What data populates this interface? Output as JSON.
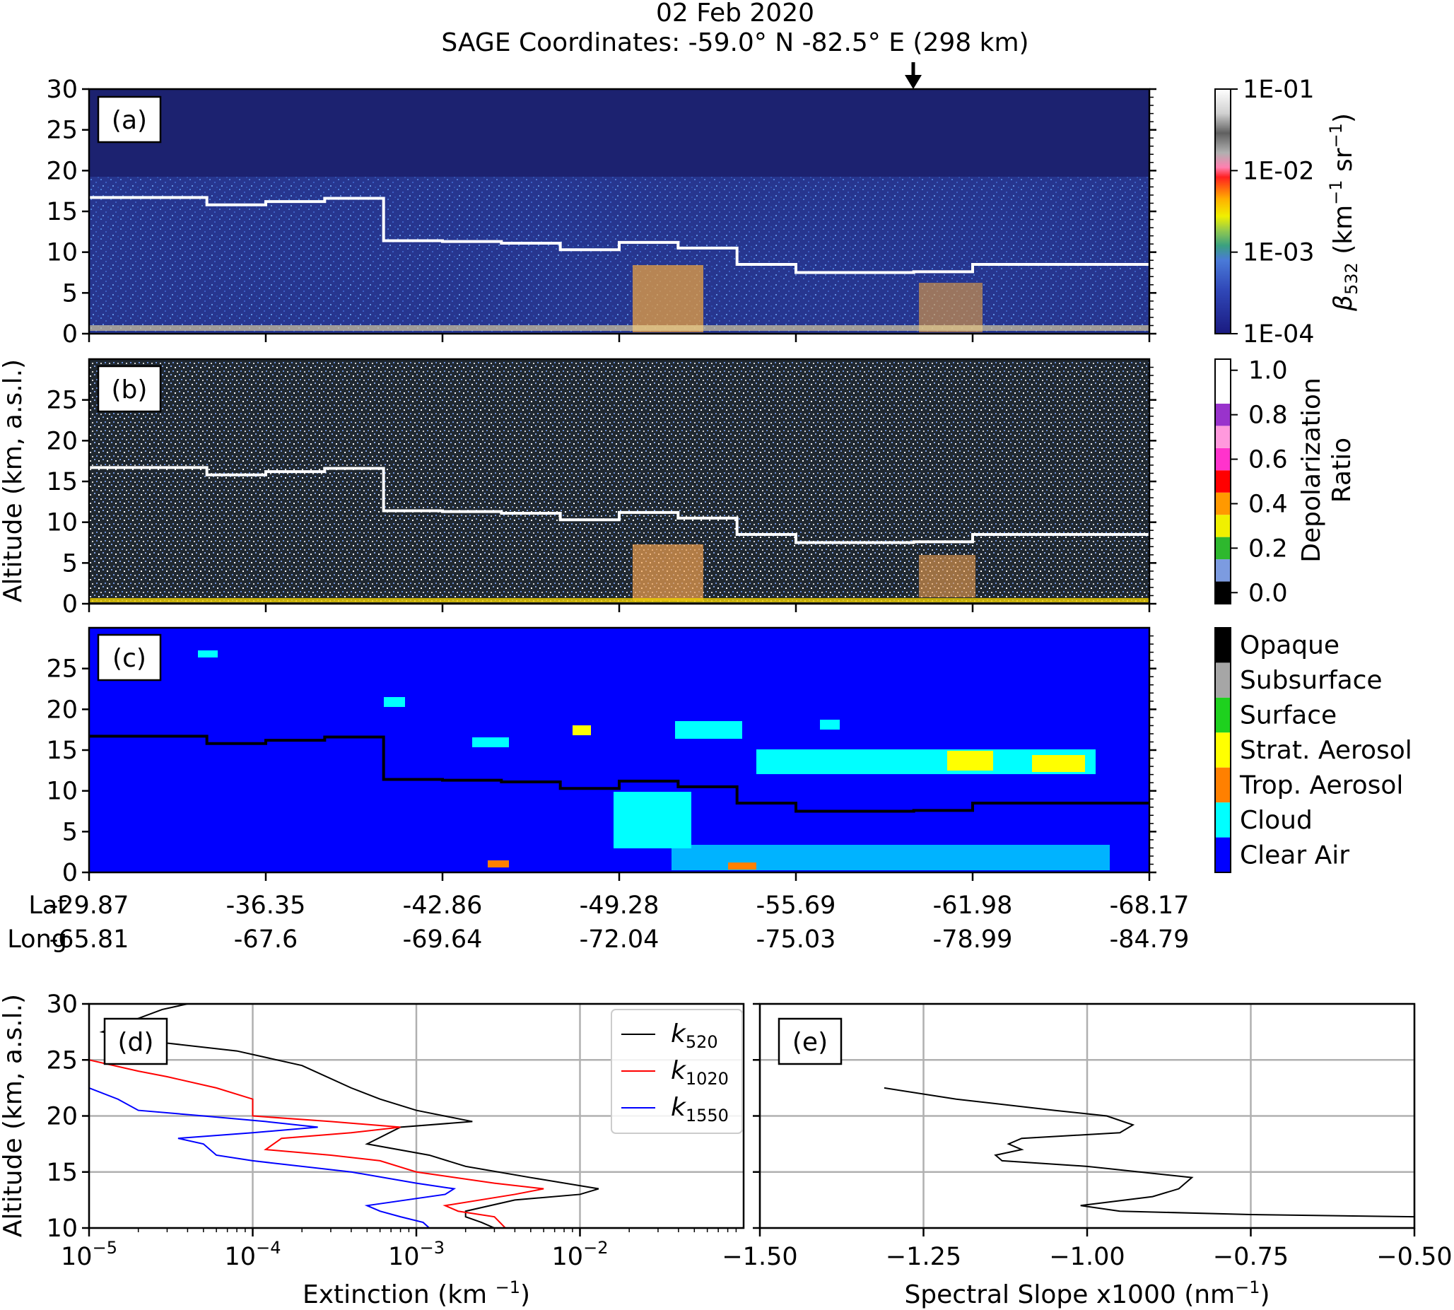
{
  "title": {
    "line1": "02 Feb 2020",
    "line2": "SAGE Coordinates: -59.0° N  -82.5° E  (298 km)"
  },
  "curtain_xaxis": {
    "row_labels": [
      "Lat",
      "Long"
    ],
    "lat_ticks": [
      "-29.87",
      "-36.35",
      "-42.86",
      "-49.28",
      "-55.69",
      "-61.98",
      "-68.17"
    ],
    "long_ticks": [
      "-65.81",
      "-67.6",
      "-69.64",
      "-72.04",
      "-75.03",
      "-78.99",
      "-84.79"
    ]
  },
  "shared_ylabel_top": "Altitude (km, a.s.l.)",
  "panels": {
    "a": {
      "tag": "(a)",
      "yticks": [
        "0",
        "5",
        "10",
        "15",
        "20",
        "25",
        "30"
      ],
      "colorbar": {
        "label_html": "β532 (km⁻¹ sr⁻¹)",
        "label_main": "β",
        "label_sub": "532",
        "label_rest": " (km",
        "label_sup1": "−1",
        "label_mid": " sr",
        "label_sup2": "−1",
        "label_end": ")",
        "ticks": [
          "1E-01",
          "1E-02",
          "1E-03",
          "1E-04"
        ]
      }
    },
    "b": {
      "tag": "(b)",
      "yticks": [
        "0",
        "5",
        "10",
        "15",
        "20",
        "25"
      ],
      "colorbar": {
        "label_line1": "Depolarization",
        "label_line2": "Ratio",
        "ticks": [
          "0.0",
          "0.2",
          "0.4",
          "0.6",
          "0.8",
          "1.0"
        ]
      }
    },
    "c": {
      "tag": "(c)",
      "yticks": [
        "0",
        "5",
        "10",
        "15",
        "20",
        "25"
      ],
      "legend": [
        {
          "label": "Opaque",
          "color": "#000000"
        },
        {
          "label": "Subsurface",
          "color": "#a6a6a6"
        },
        {
          "label": "Surface",
          "color": "#1ed11e"
        },
        {
          "label": "Strat. Aerosol",
          "color": "#ffff00"
        },
        {
          "label": "Trop. Aerosol",
          "color": "#ff8000"
        },
        {
          "label": "Cloud",
          "color": "#00ffff"
        },
        {
          "label": "Clear Air",
          "color": "#0000ff"
        }
      ]
    },
    "d": {
      "tag": "(d)",
      "ylabel": "Altitude (km, a.s.l.)",
      "xlabel": "Extinction (km ⁻¹)",
      "xlabel_main": "Extinction (km ",
      "xlabel_sup": "−1",
      "xlabel_end": ")",
      "yticks": [
        "10",
        "15",
        "20",
        "25",
        "30"
      ],
      "xticks": [
        {
          "base": "10",
          "exp": "−5"
        },
        {
          "base": "10",
          "exp": "−4"
        },
        {
          "base": "10",
          "exp": "−3"
        },
        {
          "base": "10",
          "exp": "−2"
        }
      ]
    },
    "e": {
      "tag": "(e)",
      "xlabel_main": "Spectral Slope x1000 (nm",
      "xlabel_sup": "−1",
      "xlabel_end": ")",
      "xticks": [
        "−1.50",
        "−1.25",
        "−1.00",
        "−0.75",
        "−0.50"
      ]
    }
  },
  "chart_data": [
    {
      "type": "heatmap",
      "panel": "a",
      "description_axis": "curtain of backscatter",
      "ylim": [
        0,
        30
      ],
      "y_ticks": [
        0,
        5,
        10,
        15,
        20,
        25,
        30
      ],
      "colorscale": "log",
      "colorbar_range": [
        0.0001,
        0.1
      ],
      "arrow_marker_lat": -59.0,
      "tropopause_km": [
        16.7,
        16.7,
        15.8,
        16.2,
        16.6,
        11.4,
        11.3,
        11.1,
        10.3,
        11.2,
        10.5,
        8.5,
        7.5,
        7.5,
        7.6,
        8.5,
        8.5,
        8.5
      ]
    },
    {
      "type": "heatmap",
      "panel": "b",
      "ylim": [
        0,
        30
      ],
      "y_ticks": [
        0,
        5,
        10,
        15,
        20,
        25
      ],
      "colorbar_range": [
        0.0,
        1.0
      ]
    },
    {
      "type": "heatmap",
      "panel": "c",
      "ylim": [
        0,
        30
      ],
      "y_ticks": [
        0,
        5,
        10,
        15,
        20,
        25
      ],
      "categories": [
        "Opaque",
        "Subsurface",
        "Surface",
        "Strat. Aerosol",
        "Trop. Aerosol",
        "Cloud",
        "Clear Air"
      ]
    },
    {
      "type": "line",
      "panel": "d",
      "xscale": "log",
      "xlim": [
        1e-05,
        0.1
      ],
      "ylim": [
        10,
        30
      ],
      "grid": true,
      "legend_position": "top-right",
      "series": [
        {
          "name": "k520",
          "name_base": "k",
          "name_sub": "520",
          "color": "#000000",
          "points": [
            [
              4e-05,
              30
            ],
            [
              2.8e-05,
              29.5
            ],
            [
              1.2e-05,
              27.5
            ],
            [
              3e-05,
              26.5
            ],
            [
              8e-05,
              25.8
            ],
            [
              0.0002,
              24.5
            ],
            [
              0.0004,
              22.5
            ],
            [
              0.0006,
              21.5
            ],
            [
              0.001,
              20.5
            ],
            [
              0.0022,
              19.5
            ],
            [
              0.0008,
              19.0
            ],
            [
              0.0005,
              17.5
            ],
            [
              0.0012,
              16.5
            ],
            [
              0.002,
              15.5
            ],
            [
              0.005,
              14.5
            ],
            [
              0.013,
              13.5
            ],
            [
              0.01,
              13.0
            ],
            [
              0.004,
              12.5
            ],
            [
              0.002,
              11.5
            ],
            [
              0.002,
              11.0
            ],
            [
              0.0025,
              10.5
            ],
            [
              0.003,
              10.0
            ]
          ]
        },
        {
          "name": "k1020",
          "name_base": "k",
          "name_sub": "1020",
          "color": "#ff0000",
          "points": [
            [
              1e-05,
              25.0
            ],
            [
              2e-05,
              24.0
            ],
            [
              3e-05,
              23.5
            ],
            [
              6e-05,
              22.5
            ],
            [
              0.0001,
              21.5
            ],
            [
              0.0001,
              20.0
            ],
            [
              0.0003,
              19.5
            ],
            [
              0.0008,
              19.0
            ],
            [
              0.0004,
              18.5
            ],
            [
              0.00015,
              18.0
            ],
            [
              0.00012,
              17.0
            ],
            [
              0.0003,
              16.5
            ],
            [
              0.0006,
              16.0
            ],
            [
              0.001,
              15.0
            ],
            [
              0.003,
              14.0
            ],
            [
              0.006,
              13.5
            ],
            [
              0.004,
              13.0
            ],
            [
              0.0015,
              12.0
            ],
            [
              0.0018,
              11.5
            ],
            [
              0.003,
              11.0
            ],
            [
              0.0035,
              10.0
            ]
          ]
        },
        {
          "name": "k1550",
          "name_base": "k",
          "name_sub": "1550",
          "color": "#0000ff",
          "points": [
            [
              1e-05,
              22.5
            ],
            [
              1.5e-05,
              21.5
            ],
            [
              2e-05,
              20.5
            ],
            [
              5e-05,
              20.0
            ],
            [
              0.00012,
              19.5
            ],
            [
              0.00025,
              19.0
            ],
            [
              0.0001,
              18.5
            ],
            [
              3.5e-05,
              18.0
            ],
            [
              5e-05,
              17.5
            ],
            [
              6e-05,
              16.5
            ],
            [
              0.0001,
              16.0
            ],
            [
              0.0004,
              15.0
            ],
            [
              0.001,
              14.0
            ],
            [
              0.0017,
              13.5
            ],
            [
              0.0015,
              13.0
            ],
            [
              0.0005,
              12.0
            ],
            [
              0.0006,
              11.5
            ],
            [
              0.0008,
              11.0
            ],
            [
              0.0011,
              10.5
            ],
            [
              0.0012,
              10.0
            ]
          ]
        }
      ]
    },
    {
      "type": "line",
      "panel": "e",
      "xlim": [
        -1.5,
        -0.5
      ],
      "ylim": [
        10,
        30
      ],
      "grid": true,
      "series": [
        {
          "color": "#000000",
          "points": [
            [
              -1.31,
              22.5
            ],
            [
              -1.2,
              21.5
            ],
            [
              -1.05,
              20.5
            ],
            [
              -0.97,
              20.0
            ],
            [
              -0.93,
              19.2
            ],
            [
              -0.95,
              18.5
            ],
            [
              -1.1,
              18.0
            ],
            [
              -1.12,
              17.5
            ],
            [
              -1.1,
              17.0
            ],
            [
              -1.14,
              16.5
            ],
            [
              -1.13,
              16.0
            ],
            [
              -1.0,
              15.5
            ],
            [
              -0.84,
              14.5
            ],
            [
              -0.86,
              13.5
            ],
            [
              -0.9,
              12.8
            ],
            [
              -1.01,
              12.0
            ],
            [
              -0.95,
              11.5
            ],
            [
              -0.75,
              11.2
            ],
            [
              -0.5,
              11.0
            ]
          ]
        }
      ]
    }
  ]
}
